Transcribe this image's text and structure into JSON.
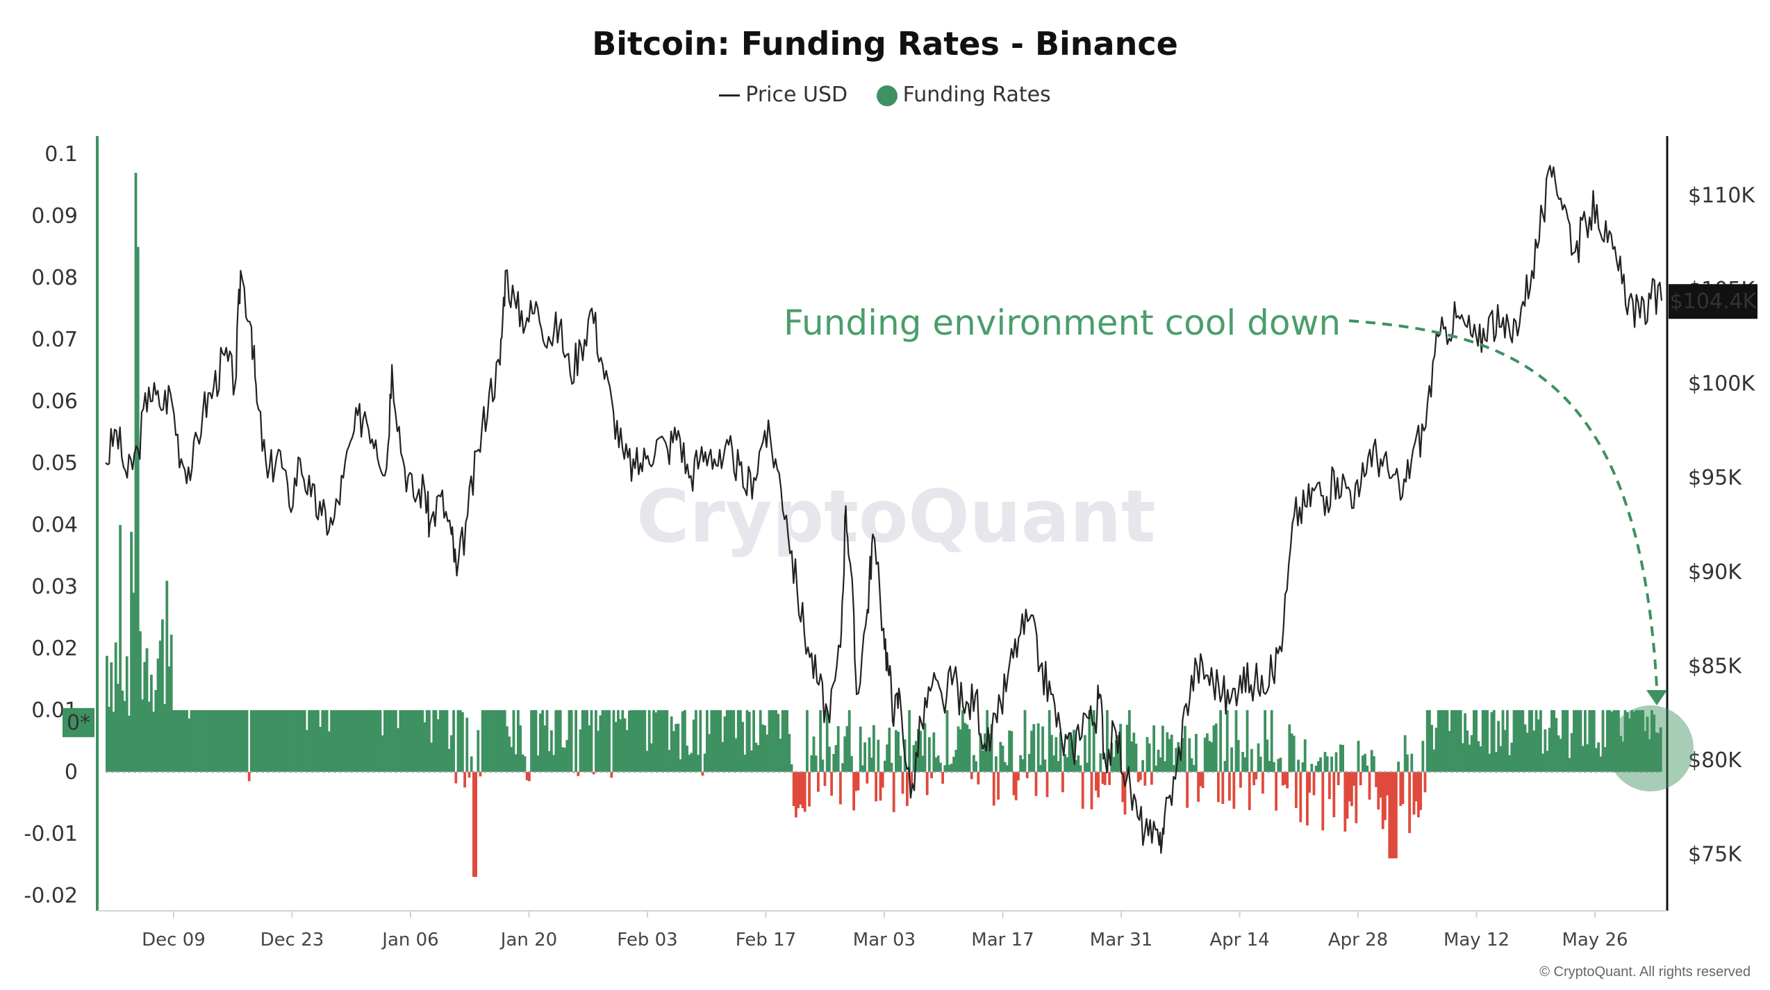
{
  "chart_data": {
    "type": "line",
    "title": "Bitcoin: Funding Rates - Binance",
    "legend": [
      {
        "name": "Price USD",
        "color": "#222222",
        "marker": "line"
      },
      {
        "name": "Funding Rates",
        "color": "#3e9160",
        "marker": "dot"
      }
    ],
    "legend_placement": "top-center",
    "x_ticks": [
      "Dec 09",
      "Dec 23",
      "Jan 06",
      "Jan 20",
      "Feb 03",
      "Feb 17",
      "Mar 03",
      "Mar 17",
      "Mar 31",
      "Apr 14",
      "Apr 28",
      "May 12",
      "May 26"
    ],
    "left_axis": {
      "ticks": [
        "0.1",
        "0.09",
        "0.08",
        "0.07",
        "0.06",
        "0.05",
        "0.04",
        "0.03",
        "0.02",
        "0.01",
        "0",
        "-0.01",
        "-0.02"
      ],
      "ylim": [
        -0.0225,
        0.1025
      ],
      "baseline_label": "0*"
    },
    "right_axis": {
      "ticks": [
        "$110K",
        "$105K",
        "$100K",
        "$95K",
        "$90K",
        "$85K",
        "$80K",
        "$75K"
      ],
      "tick_values": [
        110000,
        105000,
        100000,
        95000,
        90000,
        85000,
        80000,
        75000
      ],
      "ylim": [
        72000,
        113000
      ],
      "current_label": "$104.4K",
      "current_value": 104400
    },
    "x_range_days": [
      0,
      182
    ],
    "series": [
      {
        "name": "Price USD",
        "color": "#222222",
        "points": [
          [
            0,
            95800
          ],
          [
            2,
            97500
          ],
          [
            4,
            95000
          ],
          [
            6,
            96500
          ],
          [
            8,
            99800
          ],
          [
            10,
            98800
          ],
          [
            12,
            99500
          ],
          [
            14,
            96000
          ],
          [
            16,
            95500
          ],
          [
            18,
            98500
          ],
          [
            20,
            99800
          ],
          [
            22,
            101500
          ],
          [
            24,
            100000
          ],
          [
            25,
            106000
          ],
          [
            27,
            103000
          ],
          [
            28,
            99000
          ],
          [
            30,
            95000
          ],
          [
            32,
            96500
          ],
          [
            34,
            93500
          ],
          [
            36,
            96000
          ],
          [
            38,
            94000
          ],
          [
            40,
            93000
          ],
          [
            42,
            92500
          ],
          [
            44,
            95000
          ],
          [
            46,
            97500
          ],
          [
            48,
            98500
          ],
          [
            50,
            97000
          ],
          [
            52,
            95500
          ],
          [
            53,
            101000
          ],
          [
            55,
            96000
          ],
          [
            57,
            94000
          ],
          [
            59,
            94500
          ],
          [
            60,
            92500
          ],
          [
            62,
            94000
          ],
          [
            64,
            92000
          ],
          [
            65,
            89800
          ],
          [
            67,
            93000
          ],
          [
            69,
            96500
          ],
          [
            71,
            99500
          ],
          [
            73,
            101000
          ],
          [
            74,
            106000
          ],
          [
            76,
            104000
          ],
          [
            78,
            103500
          ],
          [
            80,
            104000
          ],
          [
            82,
            102500
          ],
          [
            84,
            103000
          ],
          [
            86,
            100500
          ],
          [
            88,
            102000
          ],
          [
            90,
            104000
          ],
          [
            92,
            101000
          ],
          [
            94,
            98500
          ],
          [
            96,
            96000
          ],
          [
            98,
            95500
          ],
          [
            100,
            96000
          ],
          [
            102,
            97000
          ],
          [
            104,
            96500
          ],
          [
            106,
            97500
          ],
          [
            108,
            95000
          ],
          [
            110,
            96000
          ],
          [
            112,
            96500
          ],
          [
            114,
            95500
          ],
          [
            116,
            96500
          ],
          [
            118,
            94500
          ],
          [
            120,
            95000
          ],
          [
            122,
            97500
          ],
          [
            124,
            96000
          ],
          [
            126,
            93000
          ],
          [
            128,
            89000
          ],
          [
            130,
            86000
          ],
          [
            132,
            84000
          ],
          [
            134,
            82000
          ],
          [
            136,
            86000
          ],
          [
            137,
            93500
          ],
          [
            138,
            90000
          ],
          [
            139,
            83500
          ],
          [
            141,
            88000
          ],
          [
            142,
            92000
          ],
          [
            144,
            87000
          ],
          [
            145,
            84500
          ],
          [
            146,
            82500
          ],
          [
            147,
            83500
          ],
          [
            149,
            78000
          ],
          [
            151,
            82000
          ],
          [
            153,
            84000
          ],
          [
            155,
            83000
          ],
          [
            157,
            84500
          ],
          [
            159,
            82500
          ],
          [
            161,
            83500
          ],
          [
            163,
            80500
          ],
          [
            165,
            82000
          ],
          [
            167,
            84500
          ],
          [
            169,
            86500
          ],
          [
            171,
            87500
          ],
          [
            173,
            85000
          ],
          [
            175,
            83500
          ],
          [
            177,
            81000
          ],
          [
            179,
            80500
          ],
          [
            181,
            82500
          ],
          [
            183,
            82000
          ],
          [
            184,
            83500
          ],
          [
            185,
            80000
          ],
          [
            187,
            81500
          ],
          [
            189,
            79000
          ],
          [
            191,
            77000
          ],
          [
            193,
            76000
          ],
          [
            195,
            75500
          ],
          [
            196,
            77000
          ],
          [
            198,
            79000
          ],
          [
            200,
            83000
          ],
          [
            202,
            85000
          ],
          [
            204,
            84500
          ],
          [
            206,
            84000
          ],
          [
            208,
            83000
          ],
          [
            210,
            84500
          ],
          [
            212,
            84000
          ],
          [
            214,
            84500
          ],
          [
            216,
            84500
          ],
          [
            218,
            87000
          ],
          [
            220,
            93000
          ],
          [
            222,
            93500
          ],
          [
            224,
            94500
          ],
          [
            226,
            94000
          ],
          [
            228,
            95000
          ],
          [
            230,
            94500
          ],
          [
            232,
            94000
          ],
          [
            234,
            96500
          ],
          [
            236,
            96000
          ],
          [
            238,
            95000
          ],
          [
            240,
            94000
          ],
          [
            242,
            96500
          ],
          [
            244,
            97500
          ],
          [
            246,
            101500
          ],
          [
            248,
            103000
          ],
          [
            250,
            103500
          ],
          [
            252,
            103000
          ],
          [
            254,
            102000
          ],
          [
            256,
            103500
          ],
          [
            258,
            103000
          ],
          [
            260,
            102500
          ],
          [
            262,
            104000
          ],
          [
            264,
            106000
          ],
          [
            266,
            109000
          ],
          [
            268,
            111500
          ],
          [
            270,
            109500
          ],
          [
            272,
            107000
          ],
          [
            274,
            108500
          ],
          [
            276,
            109500
          ],
          [
            278,
            107500
          ],
          [
            280,
            106000
          ],
          [
            282,
            104500
          ],
          [
            284,
            103500
          ],
          [
            286,
            104500
          ],
          [
            288,
            104400
          ]
        ],
        "x_units": "index (0-288 over Nov 30 - Jun 05)",
        "y_units": "USD"
      },
      {
        "name": "Funding Rates",
        "color_positive": "#3e9160",
        "color_negative": "#e04a3c",
        "segments": [
          {
            "from": 0,
            "to": 12,
            "typical": 0.02,
            "spike_max": 0.097
          },
          {
            "from": 12,
            "to": 58,
            "typical": 0.01
          },
          {
            "from": 58,
            "to": 126,
            "typical": 0.0085,
            "min": -0.017
          },
          {
            "from": 126,
            "to": 220,
            "typical": 0.006,
            "min": -0.009
          },
          {
            "from": 220,
            "to": 244,
            "typical": 0.005,
            "min": -0.014
          },
          {
            "from": 244,
            "to": 288,
            "typical": 0.009
          }
        ],
        "y_units": "rate"
      }
    ],
    "annotation": {
      "text": "Funding environment cool down",
      "color": "#4a9e6b"
    },
    "watermark": "CryptoQuant",
    "grid": false
  },
  "copyright": "© CryptoQuant. All rights reserved"
}
